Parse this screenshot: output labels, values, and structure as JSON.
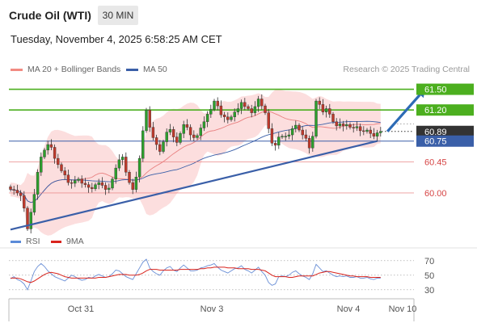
{
  "header": {
    "instrument": "Crude Oil (WTI)",
    "interval": "30 MIN",
    "timestamp": "Tuesday, November 4, 2025 6:58:25 AM CET"
  },
  "legend": {
    "bollinger": "MA 20 + Bollinger Bands",
    "ma50": "MA 50",
    "credit": "Research © 2025 Trading Central",
    "rsi": "RSI",
    "rsi_ma": "9MA"
  },
  "colors": {
    "bull": "#2ca02c",
    "bear": "#c0392b",
    "band_fill": "#fbd3d3",
    "ma20": "#e98080",
    "ma50": "#3a5fa8",
    "resistance": "#4caf1f",
    "support": "#3a5fa8",
    "pivot_red": "#e88080",
    "current": "#333333",
    "arrow": "#2d6bb5"
  },
  "chart_data": [
    {
      "type": "candlestick",
      "x_axis": {
        "ticks": [
          "Oct 31",
          "Nov 3",
          "Nov 4",
          "Nov 10"
        ]
      },
      "y_axis": {
        "ylim": [
          59.45,
          61.67
        ],
        "grid": false
      },
      "levels": [
        {
          "value": 61.5,
          "label": "61.50",
          "kind": "resistance"
        },
        {
          "value": 61.2,
          "label": "61.20",
          "kind": "resistance"
        },
        {
          "value": 60.89,
          "label": "60.89",
          "kind": "current"
        },
        {
          "value": 60.75,
          "label": "60.75",
          "kind": "support"
        },
        {
          "value": 60.45,
          "label": "60.45",
          "kind": "pivot"
        },
        {
          "value": 60.0,
          "label": "60.00",
          "kind": "pivot"
        }
      ],
      "trendline": {
        "from": [
          0,
          59.47
        ],
        "to": [
          108,
          60.75
        ]
      },
      "forecast_arrow": {
        "from": [
          111,
          60.89
        ],
        "to": [
          122,
          61.5
        ]
      },
      "close": [
        60.05,
        60.04,
        60.0,
        59.96,
        59.78,
        59.48,
        59.72,
        59.98,
        60.3,
        60.52,
        60.62,
        60.7,
        60.66,
        60.5,
        60.41,
        60.32,
        60.26,
        60.15,
        60.14,
        60.18,
        60.2,
        60.14,
        60.12,
        60.08,
        60.06,
        60.12,
        60.15,
        60.11,
        60.05,
        60.07,
        60.2,
        60.36,
        60.48,
        60.52,
        60.3,
        60.15,
        60.05,
        60.23,
        60.5,
        60.9,
        61.2,
        60.95,
        60.8,
        60.7,
        60.6,
        60.74,
        60.88,
        60.92,
        60.81,
        60.73,
        60.86,
        60.99,
        60.95,
        60.84,
        60.8,
        60.83,
        60.94,
        61.03,
        61.14,
        61.21,
        61.33,
        61.26,
        61.13,
        61.1,
        61.06,
        61.1,
        61.17,
        61.22,
        61.31,
        61.25,
        61.22,
        61.16,
        61.25,
        61.36,
        61.26,
        61.16,
        60.93,
        60.72,
        60.69,
        60.81,
        60.82,
        60.82,
        60.84,
        60.93,
        60.98,
        60.91,
        60.84,
        60.79,
        60.65,
        60.82,
        61.33,
        61.28,
        61.17,
        61.22,
        61.14,
        61.03,
        60.97,
        61.0,
        60.97,
        60.99,
        60.95,
        60.94,
        60.96,
        60.9,
        60.89,
        60.91,
        60.86,
        60.82,
        60.87,
        60.89
      ],
      "rsi": [
        45,
        48,
        44,
        42,
        38,
        30,
        42,
        55,
        62,
        66,
        62,
        56,
        52,
        48,
        46,
        44,
        42,
        46,
        50,
        48,
        45,
        43,
        44,
        47,
        46,
        49,
        51,
        49,
        47,
        48,
        52,
        57,
        56,
        52,
        48,
        46,
        44,
        52,
        60,
        68,
        72,
        60,
        55,
        52,
        50,
        56,
        60,
        62,
        57,
        55,
        60,
        64,
        60,
        56,
        56,
        57,
        60,
        61,
        63,
        64,
        66,
        61,
        57,
        55,
        53,
        56,
        59,
        60,
        63,
        58,
        56,
        53,
        57,
        61,
        55,
        50,
        40,
        36,
        38,
        48,
        49,
        48,
        50,
        54,
        56,
        52,
        49,
        47,
        44,
        52,
        65,
        60,
        55,
        56,
        53,
        50,
        48,
        49,
        48,
        49,
        47,
        47,
        48,
        46,
        46,
        47,
        45,
        44,
        46,
        46
      ],
      "rsi_ma": [
        46,
        46,
        46,
        45,
        43,
        41,
        40,
        42,
        45,
        48,
        51,
        53,
        54,
        53,
        52,
        50,
        48,
        47,
        46,
        46,
        46,
        46,
        46,
        46,
        46,
        46,
        47,
        47,
        47,
        48,
        49,
        50,
        51,
        51,
        51,
        50,
        50,
        50,
        51,
        53,
        56,
        58,
        58,
        58,
        57,
        57,
        57,
        57,
        57,
        57,
        58,
        58,
        58,
        58,
        58,
        58,
        59,
        59,
        60,
        60,
        61,
        61,
        61,
        61,
        60,
        60,
        60,
        59,
        59,
        59,
        59,
        58,
        58,
        58,
        57,
        56,
        53,
        50,
        48,
        48,
        48,
        48,
        47,
        47,
        48,
        49,
        49,
        49,
        49,
        49,
        51,
        53,
        54,
        55,
        55,
        54,
        53,
        52,
        51,
        50,
        49,
        49,
        48,
        48,
        48,
        48,
        47,
        47,
        47,
        47
      ],
      "rsi_axis": {
        "ylim": [
          22,
          82
        ],
        "ticks": [
          70,
          50,
          30
        ]
      }
    }
  ]
}
